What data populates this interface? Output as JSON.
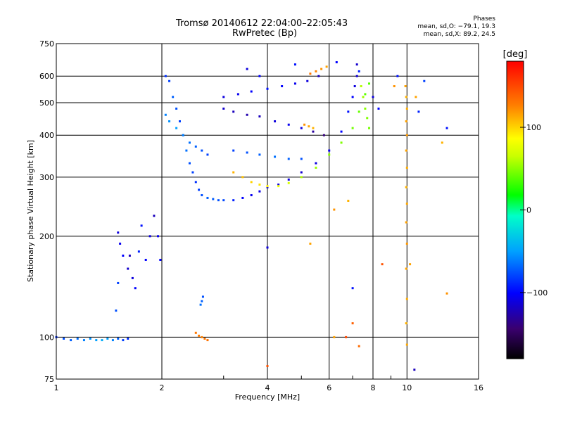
{
  "chart_data": {
    "type": "scatter",
    "title": "Tromsø 20140612 22:04:00–22:05:43",
    "subtitle": "RwPretec (Bp)",
    "xlabel": "Frequency [MHz]",
    "ylabel": "Stationary phase Virtual Height [km]",
    "x_scale": "log",
    "y_scale": "log",
    "xlim": [
      1,
      16
    ],
    "ylim": [
      75,
      750
    ],
    "x_ticks": [
      1,
      2,
      4,
      6,
      8,
      10,
      16
    ],
    "x_tick_labels": [
      "1",
      "2",
      "4",
      "6",
      "8",
      "10",
      "16"
    ],
    "y_ticks": [
      75,
      100,
      200,
      300,
      400,
      500,
      600,
      750
    ],
    "y_tick_labels": [
      "75",
      "100",
      "200",
      "300",
      "400",
      "500",
      "600",
      "750"
    ],
    "grid": true,
    "stats_title": "Phases",
    "stats_lines": [
      "mean, sd,O: −79.1, 19.3",
      "mean, sd,X:  89.2, 24.5"
    ],
    "colorbar": {
      "label": "[deg]",
      "range": [
        -180,
        180
      ],
      "ticks": [
        100,
        0,
        -100
      ],
      "tick_labels": [
        "100",
        "0",
        "−100"
      ]
    },
    "series": [
      {
        "points": [
          [
            1.0,
            100,
            -85
          ],
          [
            1.05,
            99,
            -75
          ],
          [
            1.1,
            98,
            -70
          ],
          [
            1.15,
            99,
            -65
          ],
          [
            1.2,
            98,
            -60
          ],
          [
            1.25,
            99,
            -55
          ],
          [
            1.3,
            98,
            -50
          ],
          [
            1.35,
            98,
            -45
          ],
          [
            1.4,
            99,
            -50
          ],
          [
            1.45,
            98,
            -60
          ],
          [
            1.5,
            99,
            -70
          ],
          [
            1.55,
            98,
            -80
          ],
          [
            1.6,
            99,
            -85
          ]
        ]
      },
      {
        "points": [
          [
            1.5,
            205,
            -110
          ],
          [
            1.52,
            190,
            -105
          ],
          [
            1.55,
            175,
            -100
          ],
          [
            1.5,
            145,
            -80
          ],
          [
            1.48,
            120,
            -75
          ],
          [
            1.6,
            160,
            -115
          ],
          [
            1.62,
            175,
            -120
          ],
          [
            1.65,
            150,
            -110
          ],
          [
            1.68,
            140,
            -100
          ],
          [
            1.72,
            180,
            -90
          ],
          [
            1.75,
            215,
            -95
          ],
          [
            1.8,
            170,
            -100
          ],
          [
            1.85,
            200,
            -110
          ],
          [
            1.9,
            230,
            -120
          ],
          [
            1.95,
            200,
            -105
          ],
          [
            1.98,
            170,
            -100
          ]
        ]
      },
      {
        "points": [
          [
            2.05,
            600,
            -85
          ],
          [
            2.1,
            580,
            -80
          ],
          [
            2.15,
            520,
            -70
          ],
          [
            2.2,
            480,
            -75
          ],
          [
            2.25,
            440,
            -80
          ],
          [
            2.3,
            400,
            -70
          ],
          [
            2.35,
            360,
            -65
          ],
          [
            2.4,
            330,
            -75
          ],
          [
            2.45,
            310,
            -80
          ],
          [
            2.5,
            290,
            -85
          ],
          [
            2.55,
            275,
            -80
          ],
          [
            2.6,
            265,
            -75
          ],
          [
            2.7,
            260,
            -70
          ],
          [
            2.8,
            258,
            -72
          ],
          [
            2.9,
            256,
            -75
          ],
          [
            3.0,
            256,
            -78
          ],
          [
            3.2,
            256,
            -90
          ],
          [
            3.4,
            260,
            -100
          ],
          [
            3.6,
            265,
            -105
          ],
          [
            3.8,
            272,
            -108
          ],
          [
            4.0,
            280,
            -110
          ],
          [
            4.3,
            285,
            -110
          ],
          [
            4.6,
            295,
            -110
          ],
          [
            5.0,
            310,
            -115
          ],
          [
            5.5,
            330,
            -110
          ],
          [
            6.0,
            360,
            -105
          ],
          [
            6.5,
            410,
            -100
          ],
          [
            6.8,
            470,
            -95
          ],
          [
            7.0,
            520,
            -100
          ],
          [
            7.1,
            560,
            -110
          ],
          [
            7.2,
            600,
            -115
          ]
        ]
      },
      {
        "points": [
          [
            2.05,
            460,
            -60
          ],
          [
            2.1,
            440,
            -55
          ],
          [
            2.2,
            420,
            -50
          ],
          [
            2.3,
            400,
            -60
          ],
          [
            2.4,
            380,
            -65
          ],
          [
            2.5,
            370,
            -70
          ],
          [
            2.6,
            360,
            -75
          ],
          [
            2.7,
            350,
            -80
          ]
        ]
      },
      {
        "points": [
          [
            3.2,
            310,
            110
          ],
          [
            3.4,
            300,
            105
          ],
          [
            3.6,
            290,
            100
          ],
          [
            3.8,
            285,
            95
          ],
          [
            4.0,
            282,
            90
          ],
          [
            4.3,
            282,
            80
          ],
          [
            4.6,
            288,
            70
          ],
          [
            5.0,
            300,
            60
          ],
          [
            5.5,
            320,
            55
          ],
          [
            6.0,
            350,
            50
          ],
          [
            6.5,
            380,
            48
          ],
          [
            7.0,
            420,
            45
          ],
          [
            7.3,
            470,
            42
          ],
          [
            7.6,
            530,
            40
          ],
          [
            7.8,
            570,
            38
          ]
        ]
      },
      {
        "points": [
          [
            3.0,
            520,
            -110
          ],
          [
            3.3,
            530,
            -105
          ],
          [
            3.6,
            540,
            -100
          ],
          [
            4.0,
            550,
            -95
          ],
          [
            4.4,
            560,
            -100
          ],
          [
            4.8,
            570,
            -105
          ],
          [
            5.2,
            580,
            -110
          ],
          [
            5.6,
            600,
            -120
          ]
        ]
      },
      {
        "points": [
          [
            3.0,
            480,
            -115
          ],
          [
            3.2,
            470,
            -120
          ],
          [
            3.5,
            460,
            -125
          ],
          [
            3.8,
            455,
            -120
          ],
          [
            4.2,
            440,
            -110
          ],
          [
            4.6,
            430,
            -105
          ],
          [
            5.0,
            420,
            -110
          ],
          [
            5.4,
            410,
            -130
          ],
          [
            5.8,
            400,
            -140
          ]
        ]
      },
      {
        "points": [
          [
            3.2,
            360,
            -80
          ],
          [
            3.5,
            355,
            -75
          ],
          [
            3.8,
            350,
            -70
          ],
          [
            4.2,
            345,
            -65
          ],
          [
            4.6,
            340,
            -70
          ],
          [
            5.0,
            340,
            -75
          ]
        ]
      },
      {
        "points": [
          [
            5.3,
            610,
            130
          ],
          [
            5.5,
            620,
            125
          ],
          [
            5.7,
            630,
            120
          ],
          [
            5.9,
            640,
            115
          ]
        ]
      },
      {
        "points": [
          [
            7.4,
            560,
            60
          ],
          [
            7.5,
            520,
            55
          ],
          [
            7.6,
            480,
            50
          ],
          [
            7.7,
            450,
            48
          ],
          [
            7.8,
            420,
            45
          ]
        ]
      },
      {
        "points": [
          [
            5.1,
            430,
            120
          ],
          [
            5.25,
            425,
            115
          ],
          [
            5.4,
            420,
            110
          ]
        ]
      },
      {
        "points": [
          [
            2.5,
            103,
            130
          ],
          [
            2.55,
            101,
            128
          ],
          [
            2.6,
            100,
            125
          ],
          [
            2.65,
            99,
            130
          ],
          [
            2.7,
            98,
            132
          ]
        ]
      },
      {
        "points": [
          [
            2.6,
            128,
            -70
          ],
          [
            2.62,
            132,
            -75
          ],
          [
            2.58,
            125,
            -65
          ]
        ]
      },
      {
        "points": [
          [
            9.9,
            560,
            115
          ],
          [
            9.95,
            520,
            110
          ],
          [
            10.0,
            480,
            112
          ],
          [
            9.95,
            440,
            115
          ],
          [
            10.0,
            400,
            118
          ],
          [
            9.95,
            360,
            115
          ],
          [
            10.0,
            320,
            112
          ],
          [
            9.95,
            280,
            110
          ],
          [
            10.0,
            250,
            113
          ],
          [
            9.95,
            220,
            115
          ],
          [
            10.0,
            190,
            118
          ],
          [
            9.95,
            160,
            115
          ],
          [
            10.0,
            130,
            112
          ],
          [
            9.95,
            110,
            110
          ],
          [
            10.0,
            95,
            113
          ]
        ]
      },
      {
        "points": [
          [
            7.3,
            620,
            -90
          ],
          [
            8.0,
            520,
            -110
          ],
          [
            8.3,
            480,
            -100
          ],
          [
            9.2,
            560,
            120
          ],
          [
            9.4,
            600,
            -95
          ],
          [
            10.6,
            520,
            115
          ],
          [
            10.8,
            470,
            -90
          ],
          [
            11.2,
            580,
            -80
          ],
          [
            12.6,
            380,
            110
          ],
          [
            13.0,
            420,
            -95
          ],
          [
            13.0,
            135,
            120
          ],
          [
            6.7,
            100,
            150
          ],
          [
            7.3,
            94,
            135
          ],
          [
            7.0,
            110,
            140
          ],
          [
            4.0,
            82,
            145
          ],
          [
            4.0,
            185,
            -110
          ],
          [
            6.2,
            100,
            115
          ],
          [
            6.2,
            240,
            120
          ],
          [
            5.3,
            190,
            115
          ],
          [
            6.8,
            255,
            110
          ],
          [
            7.0,
            140,
            -95
          ],
          [
            8.5,
            165,
            145
          ],
          [
            10.2,
            165,
            115
          ],
          [
            10.5,
            80,
            -120
          ],
          [
            3.5,
            630,
            -110
          ],
          [
            3.8,
            600,
            -100
          ],
          [
            4.8,
            650,
            -95
          ],
          [
            6.3,
            660,
            -100
          ],
          [
            7.2,
            650,
            -115
          ]
        ]
      }
    ]
  }
}
